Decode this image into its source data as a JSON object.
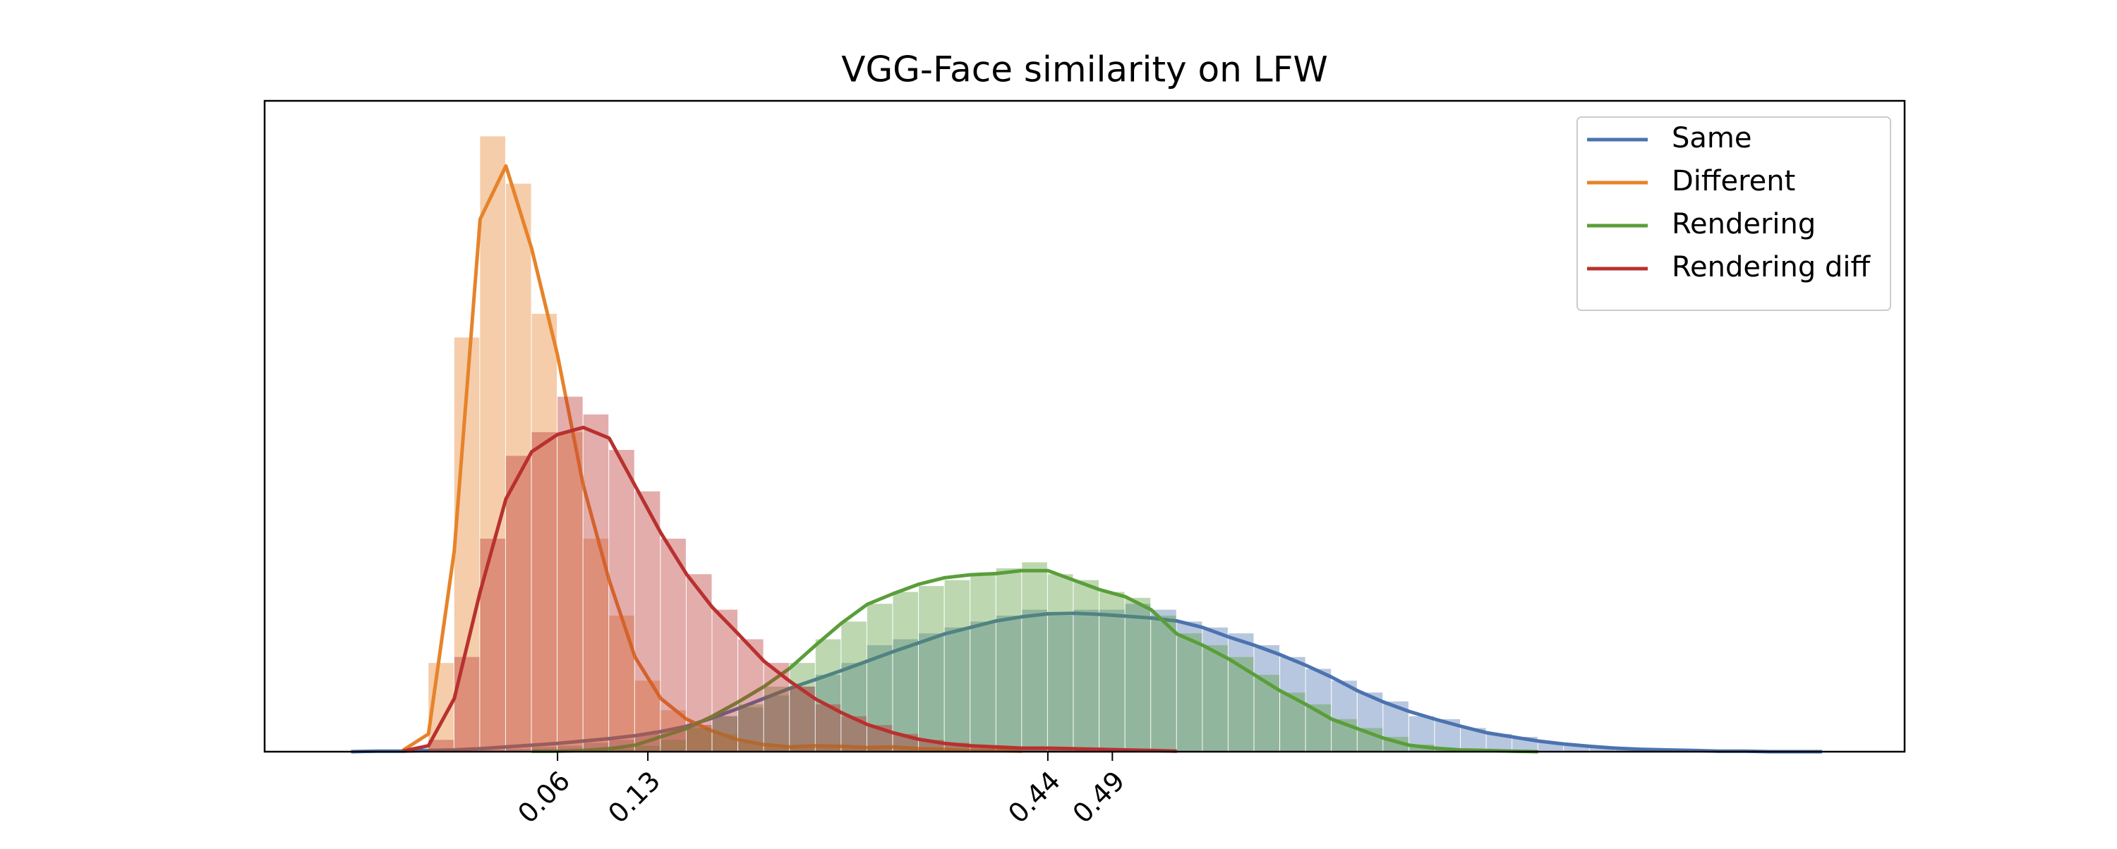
{
  "chart_data": {
    "type": "histogram",
    "title": "VGG-Face similarity on LFW",
    "xlim": [
      -0.167,
      1.104
    ],
    "ylim": [
      0,
      11
    ],
    "xticks": [
      0.06,
      0.13,
      0.44,
      0.49
    ],
    "legend": "upper right",
    "bins": [
      -0.04,
      -0.02,
      0,
      0.02,
      0.04,
      0.06,
      0.08,
      0.1,
      0.12,
      0.14,
      0.16,
      0.18,
      0.2,
      0.22,
      0.24,
      0.26,
      0.28,
      0.3,
      0.32,
      0.34,
      0.36,
      0.38,
      0.4,
      0.42,
      0.44,
      0.46,
      0.48,
      0.5,
      0.52,
      0.54,
      0.56,
      0.58,
      0.6,
      0.62,
      0.64,
      0.66,
      0.68,
      0.7,
      0.72,
      0.74,
      0.76,
      0.78,
      0.8,
      0.82,
      0.84,
      0.86,
      0.88,
      0.9,
      0.92,
      0.94,
      0.96,
      0.98,
      1.0
    ],
    "x": [
      -0.12,
      -0.1,
      -0.08,
      -0.06,
      -0.04,
      -0.02,
      0,
      0.02,
      0.04,
      0.06,
      0.08,
      0.1,
      0.12,
      0.14,
      0.16,
      0.18,
      0.2,
      0.22,
      0.24,
      0.26,
      0.28,
      0.3,
      0.32,
      0.34,
      0.36,
      0.38,
      0.4,
      0.42,
      0.44,
      0.46,
      0.48,
      0.5,
      0.52,
      0.54,
      0.56,
      0.58,
      0.6,
      0.62,
      0.64,
      0.66,
      0.68,
      0.7,
      0.72,
      0.74,
      0.76,
      0.78,
      0.8,
      0.82,
      0.84,
      0.86,
      0.88,
      0.9,
      0.92,
      0.94,
      0.96,
      0.98,
      1.0,
      1.02,
      1.04
    ],
    "series": [
      {
        "name": "Same",
        "color": "#4c72b0",
        "values": [
          0,
          0,
          0.03,
          0.05,
          0.08,
          0.1,
          0.15,
          0.2,
          0.3,
          0.35,
          0.45,
          0.6,
          0.75,
          0.95,
          1.1,
          1.3,
          1.5,
          1.8,
          1.9,
          2.0,
          2.1,
          2.2,
          2.3,
          2.4,
          2.3,
          2.4,
          2.4,
          2.5,
          2.4,
          2.2,
          2.1,
          2.0,
          1.8,
          1.6,
          1.4,
          1.2,
          1.0,
          0.85,
          0.6,
          0.55,
          0.4,
          0.3,
          0.25,
          0.15,
          0.1,
          0.07,
          0.04,
          0.02,
          0.01,
          0,
          0,
          0
        ],
        "kde": [
          null,
          0,
          0.01,
          0.01,
          0.02,
          0.03,
          0.05,
          0.08,
          0.11,
          0.14,
          0.18,
          0.22,
          0.27,
          0.34,
          0.43,
          0.57,
          0.73,
          0.9,
          1.07,
          1.22,
          1.37,
          1.53,
          1.69,
          1.84,
          1.99,
          2.1,
          2.21,
          2.28,
          2.33,
          2.34,
          2.32,
          2.29,
          2.26,
          2.21,
          2.1,
          1.94,
          1.8,
          1.64,
          1.46,
          1.26,
          1.03,
          0.84,
          0.68,
          0.55,
          0.43,
          0.32,
          0.25,
          0.18,
          0.13,
          0.09,
          0.06,
          0.04,
          0.03,
          0.02,
          0.01,
          0.01,
          0,
          0,
          0
        ]
      },
      {
        "name": "Different",
        "color": "#e6832a",
        "values": [
          1.5,
          7.0,
          10.4,
          9.6,
          7.4,
          5.4,
          3.6,
          2.3,
          1.2,
          0.7,
          0.45,
          0.3,
          0.15,
          0.1,
          0.08,
          0.1,
          0.06,
          0.05,
          0.04,
          0.03,
          0.02,
          0.01,
          0,
          0,
          0,
          0,
          0,
          0,
          0,
          0,
          0,
          0,
          0,
          0,
          0,
          0,
          0,
          0,
          0,
          0,
          0,
          0,
          0,
          0,
          0,
          0,
          0,
          0,
          0,
          0,
          0,
          0
        ],
        "kde": [
          null,
          null,
          null,
          0.02,
          0.3,
          3.4,
          9.0,
          9.9,
          8.5,
          6.7,
          4.5,
          2.9,
          1.6,
          0.9,
          0.55,
          0.35,
          0.2,
          0.12,
          0.08,
          0.1,
          0.09,
          0.07,
          0.08,
          0.05,
          0.04,
          0.02,
          0.02,
          0.01,
          null,
          null,
          null,
          null,
          null,
          null,
          null,
          null,
          null,
          null,
          null,
          null,
          null,
          null,
          null,
          null,
          null,
          null,
          null,
          null,
          null,
          null,
          null,
          null,
          null,
          null,
          null,
          null,
          null,
          null,
          null
        ]
      },
      {
        "name": "Rendering",
        "color": "#5a9e3a",
        "values": [
          0,
          0,
          0,
          0,
          0,
          0,
          0,
          0.05,
          0.1,
          0.2,
          0.4,
          0.6,
          0.8,
          1.1,
          1.5,
          1.9,
          2.2,
          2.5,
          2.7,
          2.8,
          2.9,
          3.0,
          3.1,
          3.2,
          3.0,
          2.9,
          2.7,
          2.6,
          2.3,
          2.0,
          1.8,
          1.6,
          1.3,
          1.0,
          0.8,
          0.55,
          0.4,
          0.25,
          0.12,
          0.06,
          0.03,
          0.01,
          0,
          0,
          0,
          0,
          0,
          0,
          0,
          0,
          0,
          0
        ],
        "kde": [
          null,
          null,
          null,
          null,
          null,
          null,
          null,
          null,
          0.01,
          0.01,
          0.02,
          0.05,
          0.11,
          0.25,
          0.39,
          0.6,
          0.84,
          1.1,
          1.41,
          1.8,
          2.17,
          2.49,
          2.67,
          2.83,
          2.94,
          2.99,
          3.01,
          3.06,
          3.06,
          2.9,
          2.74,
          2.62,
          2.4,
          1.99,
          1.8,
          1.57,
          1.3,
          1.03,
          0.8,
          0.55,
          0.39,
          0.23,
          0.11,
          0.06,
          0.03,
          0.02,
          0.01,
          0,
          null,
          null,
          null,
          null,
          null,
          null,
          null,
          null,
          null,
          null,
          null
        ]
      },
      {
        "name": "Rendering diff",
        "color": "#b8312f",
        "values": [
          0.2,
          1.6,
          3.6,
          5.0,
          5.4,
          6.0,
          5.7,
          5.1,
          4.4,
          3.6,
          3.0,
          2.4,
          1.9,
          1.5,
          1.1,
          0.8,
          0.6,
          0.45,
          0.3,
          0.2,
          0.15,
          0.1,
          0.08,
          0.06,
          0.05,
          0.04,
          0.03,
          0.02,
          0,
          0,
          0,
          0,
          0,
          0,
          0,
          0,
          0,
          0,
          0,
          0,
          0,
          0,
          0,
          0,
          0,
          0,
          0,
          0,
          0,
          0,
          0,
          0
        ],
        "kde": [
          null,
          null,
          null,
          0.01,
          0.1,
          0.9,
          2.7,
          4.27,
          5.07,
          5.36,
          5.48,
          5.3,
          4.5,
          3.7,
          3.0,
          2.44,
          1.99,
          1.53,
          1.19,
          0.89,
          0.66,
          0.46,
          0.32,
          0.21,
          0.14,
          0.1,
          0.08,
          0.06,
          0.06,
          0.05,
          0.04,
          0.03,
          0.02,
          0.01,
          null,
          null,
          null,
          null,
          null,
          null,
          null,
          null,
          null,
          null,
          null,
          null,
          null,
          null,
          null,
          null,
          null,
          null,
          null,
          null,
          null,
          null,
          null,
          null,
          null
        ]
      }
    ]
  }
}
